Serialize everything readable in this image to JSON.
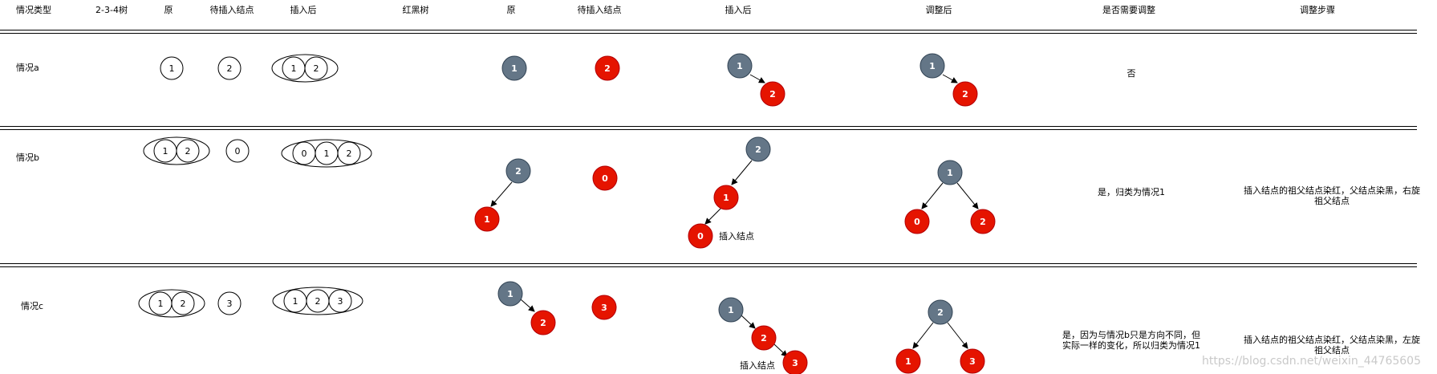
{
  "headers": {
    "case_type": "情况类型",
    "tree234": "2-3-4树",
    "orig": "原",
    "to_insert": "待插入结点",
    "after_insert": "插入后",
    "rbtree": "红黑树",
    "rb_orig": "原",
    "rb_to_insert": "待插入结点",
    "rb_after_insert": "插入后",
    "adjusted": "调整后",
    "need_adjust": "是否需要调整",
    "steps": "调整步骤"
  },
  "rows": {
    "a": {
      "label": "情况a",
      "t_orig": [
        "1"
      ],
      "t_insert": "2",
      "t_after": [
        "1",
        "2"
      ],
      "rb_orig": "1",
      "rb_insert": "2",
      "rb_after": [
        "1",
        "2"
      ],
      "rb_adjusted": [
        "1",
        "2"
      ],
      "need": "否",
      "steps": ""
    },
    "b": {
      "label": "情况b",
      "t_orig": [
        "1",
        "2"
      ],
      "t_insert": "0",
      "t_after": [
        "0",
        "1",
        "2"
      ],
      "rb_orig": [
        "2",
        "1"
      ],
      "rb_insert": "0",
      "rb_after": [
        "2",
        "1",
        "0"
      ],
      "insert_note": "插入结点",
      "rb_adjusted": [
        "1",
        "0",
        "2"
      ],
      "need": "是，归类为情况1",
      "steps_line1": "插入结点的祖父结点染红，父结点染黑，右旋",
      "steps_line2": "祖父结点"
    },
    "c": {
      "label": "情况c",
      "t_orig": [
        "1",
        "2"
      ],
      "t_insert": "3",
      "t_after": [
        "1",
        "2",
        "3"
      ],
      "rb_orig": [
        "1",
        "2"
      ],
      "rb_insert": "3",
      "rb_after": [
        "1",
        "2",
        "3"
      ],
      "insert_note": "插入结点",
      "rb_adjusted": [
        "2",
        "1",
        "3"
      ],
      "need_line1": "是，因为与情况b只是方向不同，但",
      "need_line2": "实际一样的变化，所以归类为情况1",
      "steps_line1": "插入结点的祖父结点染红，父结点染黑，左旋",
      "steps_line2": "祖父结点"
    }
  },
  "colors": {
    "black_node": "#647687",
    "red_node": "#e51400",
    "outline": "#000000"
  },
  "watermark": "https://blog.csdn.net/weixin_44765605"
}
